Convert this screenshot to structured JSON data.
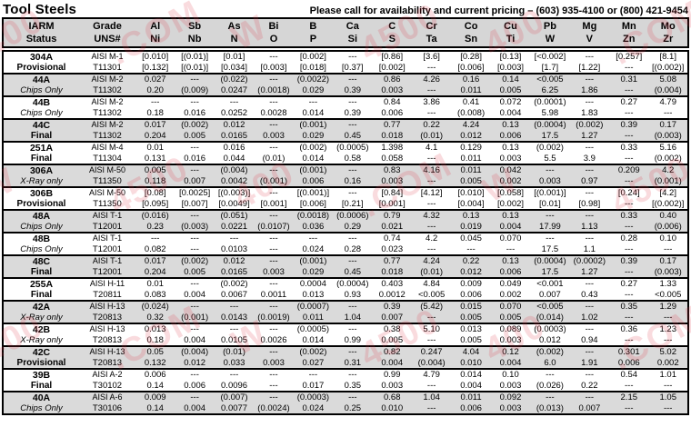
{
  "page": {
    "title": "Tool Steels",
    "pricing_note": "Please call for availability and current pricing – (603) 935-4100 or (800) 421-9454"
  },
  "colors": {
    "header_bg": "#d6d6d6",
    "shaded_row_bg": "#dadada",
    "border": "#000000",
    "watermark": "#e03040"
  },
  "watermark": {
    "fragments": [
      "400",
      ".COM",
      "W",
      "4500"
    ]
  },
  "table": {
    "status_header": {
      "top": "IARM",
      "bottom": "Status"
    },
    "grade_header": {
      "top": "Grade",
      "bottom": "UNS#"
    },
    "element_columns": [
      {
        "top": "Al",
        "bottom": "Ni"
      },
      {
        "top": "Sb",
        "bottom": "Nb"
      },
      {
        "top": "As",
        "bottom": "N"
      },
      {
        "top": "Bi",
        "bottom": "O"
      },
      {
        "top": "B",
        "bottom": "P"
      },
      {
        "top": "Ca",
        "bottom": "Si"
      },
      {
        "top": "C",
        "bottom": "S"
      },
      {
        "top": "Cr",
        "bottom": "Ta"
      },
      {
        "top": "Co",
        "bottom": "Sn"
      },
      {
        "top": "Cu",
        "bottom": "Ti"
      },
      {
        "top": "Pb",
        "bottom": "W"
      },
      {
        "top": "Mg",
        "bottom": "V"
      },
      {
        "top": "Mn",
        "bottom": "Zn"
      },
      {
        "top": "Mo",
        "bottom": "Zr"
      }
    ],
    "rows": [
      {
        "code": "304A",
        "status": "Provisional",
        "grade": "AISI M-1",
        "uns": "T11301",
        "values_top": [
          "[0.010]",
          "[(0.01)]",
          "[0.01]",
          "---",
          "[0.002]",
          "---",
          "[0.86]",
          "[3.6]",
          "[0.28]",
          "[0.13]",
          "[<0.002]",
          "---",
          "[0.257]",
          "[8.1]"
        ],
        "values_bottom": [
          "[0.132]",
          "[(0.01)]",
          "[0.034]",
          "[0.003]",
          "[0.018]",
          "[0.37]",
          "[0.002]",
          "---",
          "[0.006]",
          "[0.003]",
          "[1.7]",
          "[1.22]",
          "---",
          "[(0.002)]"
        ]
      },
      {
        "code": "44A",
        "status": "Chips Only",
        "grade": "AISI M-2",
        "uns": "T11302",
        "values_top": [
          "0.027",
          "---",
          "(0.022)",
          "---",
          "(0.0022)",
          "---",
          "0.86",
          "4.26",
          "0.16",
          "0.14",
          "<0.005",
          "---",
          "0.31",
          "5.08"
        ],
        "values_bottom": [
          "0.20",
          "(0.009)",
          "0.0247",
          "(0.0018)",
          "0.029",
          "0.39",
          "0.003",
          "---",
          "0.011",
          "0.005",
          "6.25",
          "1.86",
          "---",
          "(0.004)"
        ]
      },
      {
        "code": "44B",
        "status": "Chips Only",
        "grade": "AISI M-2",
        "uns": "T11302",
        "values_top": [
          "---",
          "---",
          "---",
          "---",
          "---",
          "---",
          "0.84",
          "3.86",
          "0.41",
          "0.072",
          "(0.0001)",
          "---",
          "0.27",
          "4.79"
        ],
        "values_bottom": [
          "0.18",
          "0.016",
          "0.0252",
          "0.0028",
          "0.014",
          "0.39",
          "0.006",
          "---",
          "(0.008)",
          "0.004",
          "5.98",
          "1.83",
          "---",
          "---"
        ]
      },
      {
        "code": "44C",
        "status": "Final",
        "grade": "AISI M-2",
        "uns": "T11302",
        "values_top": [
          "0.017",
          "(0.002)",
          "0.012",
          "---",
          "(0.001)",
          "---",
          "0.77",
          "0.22",
          "4.24",
          "0.13",
          "(0.0004)",
          "(0.002)",
          "0.39",
          "0.17"
        ],
        "values_bottom": [
          "0.204",
          "0.005",
          "0.0165",
          "0.003",
          "0.029",
          "0.45",
          "0.018",
          "(0.01)",
          "0.012",
          "0.006",
          "17.5",
          "1.27",
          "---",
          "(0.003)"
        ]
      },
      {
        "code": "251A",
        "status": "Final",
        "grade": "AISI M-4",
        "uns": "T11304",
        "values_top": [
          "0.01",
          "---",
          "0.016",
          "---",
          "(0.002)",
          "(0.0005)",
          "1.398",
          "4.1",
          "0.129",
          "0.13",
          "(0.002)",
          "---",
          "0.33",
          "5.16"
        ],
        "values_bottom": [
          "0.131",
          "0.016",
          "0.044",
          "(0.01)",
          "0.014",
          "0.58",
          "0.058",
          "---",
          "0.011",
          "0.003",
          "5.5",
          "3.9",
          "---",
          "(0.002)"
        ]
      },
      {
        "code": "306A",
        "status": "X-Ray only",
        "grade": "AISI M-50",
        "uns": "T11350",
        "values_top": [
          "0.005",
          "---",
          "(0.004)",
          "---",
          "(0.001)",
          "---",
          "0.83",
          "4.16",
          "0.011",
          "0.042",
          "---",
          "---",
          "0.209",
          "4.2"
        ],
        "values_bottom": [
          "0.118",
          "0.007",
          "0.0042",
          "(0.001)",
          "0.006",
          "0.16",
          "0.003",
          "---",
          "0.005",
          "0.002",
          "0.003",
          "0.97",
          "---",
          "(0.001)"
        ]
      },
      {
        "code": "306B",
        "status": "Provisional",
        "grade": "AISI M-50",
        "uns": "T11350",
        "values_top": [
          "[0.08]",
          "[0.0025]",
          "[(0.003)]",
          "---",
          "[(0.001)]",
          "---",
          "[0.84]",
          "[4.12]",
          "[0.010]",
          "[0.058]",
          "[(0.001)]",
          "---",
          "[0.24]",
          "[4.2]"
        ],
        "values_bottom": [
          "[0.095]",
          "[0.007]",
          "[0.0049]",
          "[0.001]",
          "[0.006]",
          "[0.21]",
          "[0.001]",
          "---",
          "[0.004]",
          "[0.002]",
          "[0.01]",
          "[0.98]",
          "---",
          "[(0.002)]"
        ]
      },
      {
        "code": "48A",
        "status": "Chips Only",
        "grade": "AISI T-1",
        "uns": "T12001",
        "values_top": [
          "(0.016)",
          "---",
          "(0.051)",
          "---",
          "(0.0018)",
          "(0.0006)",
          "0.79",
          "4.32",
          "0.13",
          "0.13",
          "---",
          "---",
          "0.33",
          "0.40"
        ],
        "values_bottom": [
          "0.23",
          "(0.003)",
          "0.0221",
          "(0.0107)",
          "0.036",
          "0.29",
          "0.021",
          "---",
          "0.019",
          "0.004",
          "17.99",
          "1.13",
          "---",
          "(0.006)"
        ]
      },
      {
        "code": "48B",
        "status": "Chips Only",
        "grade": "AISI T-1",
        "uns": "T12001",
        "values_top": [
          "---",
          "---",
          "---",
          "---",
          "---",
          "---",
          "0.74",
          "4.2",
          "0.045",
          "0.070",
          "---",
          "---",
          "0.28",
          "0.10"
        ],
        "values_bottom": [
          "0.082",
          "---",
          "0.0103",
          "---",
          "0.024",
          "0.28",
          "0.023",
          "---",
          "---",
          "---",
          "17.5",
          "1.1",
          "---",
          "---"
        ]
      },
      {
        "code": "48C",
        "status": "Final",
        "grade": "AISI T-1",
        "uns": "T12001",
        "values_top": [
          "0.017",
          "(0.002)",
          "0.012",
          "---",
          "(0.001)",
          "---",
          "0.77",
          "4.24",
          "0.22",
          "0.13",
          "(0.0004)",
          "(0.0002)",
          "0.39",
          "0.17"
        ],
        "values_bottom": [
          "0.204",
          "0.005",
          "0.0165",
          "0.003",
          "0.029",
          "0.45",
          "0.018",
          "(0.01)",
          "0.012",
          "0.006",
          "17.5",
          "1.27",
          "---",
          "(0.003)"
        ]
      },
      {
        "code": "255A",
        "status": "Final",
        "grade": "AISI H-11",
        "uns": "T20811",
        "values_top": [
          "0.01",
          "---",
          "(0.002)",
          "---",
          "0.0004",
          "(0.0004)",
          "0.403",
          "4.84",
          "0.009",
          "0.049",
          "<0.001",
          "---",
          "0.27",
          "1.33"
        ],
        "values_bottom": [
          "0.083",
          "0.004",
          "0.0067",
          "0.0011",
          "0.013",
          "0.93",
          "0.0012",
          "<0.005",
          "0.006",
          "0.002",
          "0.007",
          "0.43",
          "---",
          "<0.005"
        ]
      },
      {
        "code": "42A",
        "status": "X-Ray only",
        "grade": "AISI H-13",
        "uns": "T20813",
        "values_top": [
          "(0.024)",
          "---",
          "---",
          "---",
          "(0.0007)",
          "---",
          "0.39",
          "(5.42)",
          "0.015",
          "0.070",
          "<0.005",
          "---",
          "0.35",
          "1.29"
        ],
        "values_bottom": [
          "0.32",
          "(0.001)",
          "0.0143",
          "(0.0019)",
          "0.011",
          "1.04",
          "0.007",
          "---",
          "0.005",
          "0.005",
          "(0.014)",
          "1.02",
          "---",
          "---"
        ]
      },
      {
        "code": "42B",
        "status": "X-Ray only",
        "grade": "AISI H-13",
        "uns": "T20813",
        "values_top": [
          "0.013",
          "---",
          "---",
          "---",
          "(0.0005)",
          "---",
          "0.38",
          "5.10",
          "0.013",
          "0.089",
          "(0.0003)",
          "---",
          "0.36",
          "1.23"
        ],
        "values_bottom": [
          "0.18",
          "0.004",
          "0.0105",
          "0.0026",
          "0.014",
          "0.99",
          "0.005",
          "---",
          "0.005",
          "0.003",
          "0.012",
          "0.94",
          "---",
          "---"
        ]
      },
      {
        "code": "42C",
        "status": "Provisional",
        "grade": "AISI H-13",
        "uns": "T20813",
        "values_top": [
          "0.05",
          "(0.004)",
          "(0.01)",
          "---",
          "(0.002)",
          "---",
          "0.82",
          "0.247",
          "4.04",
          "0.12",
          "(0.002)",
          "---",
          "0.301",
          "5.02"
        ],
        "values_bottom": [
          "0.132",
          "0.012",
          "0.033",
          "0.003",
          "0.027",
          "0.31",
          "0.004",
          "(0.004)",
          "0.010",
          "0.004",
          "6.0",
          "1.91",
          "0.006",
          "0.002"
        ]
      },
      {
        "code": "39B",
        "status": "Final",
        "grade": "AISI A-2",
        "uns": "T30102",
        "values_top": [
          "0.006",
          "---",
          "---",
          "---",
          "---",
          "---",
          "0.99",
          "4.79",
          "0.014",
          "0.10",
          "---",
          "---",
          "0.54",
          "1.01"
        ],
        "values_bottom": [
          "0.14",
          "0.006",
          "0.0096",
          "---",
          "0.017",
          "0.35",
          "0.003",
          "---",
          "0.004",
          "0.003",
          "(0.026)",
          "0.22",
          "---",
          "---"
        ]
      },
      {
        "code": "40A",
        "status": "Chips Only",
        "grade": "AISI A-6",
        "uns": "T30106",
        "values_top": [
          "0.009",
          "---",
          "(0.007)",
          "---",
          "(0.0003)",
          "---",
          "0.68",
          "1.04",
          "0.011",
          "0.092",
          "---",
          "---",
          "2.15",
          "1.05"
        ],
        "values_bottom": [
          "0.14",
          "0.004",
          "0.0077",
          "(0.0024)",
          "0.024",
          "0.25",
          "0.010",
          "---",
          "0.006",
          "0.003",
          "(0.013)",
          "0.007",
          "---",
          "---"
        ]
      }
    ]
  }
}
